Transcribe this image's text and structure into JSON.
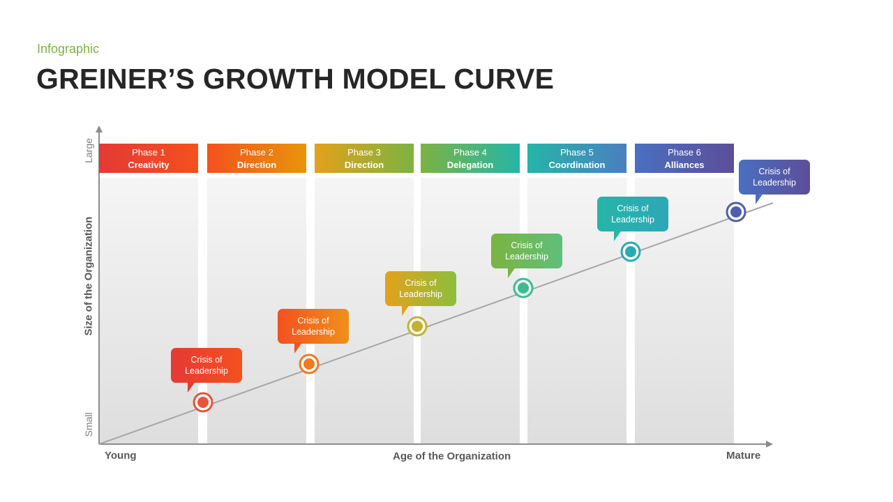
{
  "header": {
    "subtitle": "Infographic",
    "title": "GREINER’S GROWTH MODEL CURVE"
  },
  "axes": {
    "y_label": "Size of the Organization",
    "y_top": "Large",
    "y_bottom": "Small",
    "x_label": "Age of the Organization",
    "x_left": "Young",
    "x_right": "Mature"
  },
  "phases": [
    {
      "number": "Phase 1",
      "name": "Creativity",
      "color_start": "#e53935",
      "color_end": "#f4511e"
    },
    {
      "number": "Phase 2",
      "name": "Direction",
      "color_start": "#f4511e",
      "color_end": "#e8950a"
    },
    {
      "number": "Phase 3",
      "name": "Direction",
      "color_start": "#e3a11b",
      "color_end": "#7cb342"
    },
    {
      "number": "Phase 4",
      "name": "Delegation",
      "color_start": "#7cb342",
      "color_end": "#26b5a8"
    },
    {
      "number": "Phase 5",
      "name": "Coordination",
      "color_start": "#26b5a8",
      "color_end": "#4a7fc1"
    },
    {
      "number": "Phase 6",
      "name": "Alliances",
      "color_start": "#4a6fc1",
      "color_end": "#5d4e99"
    }
  ],
  "crises": [
    {
      "line1": "Crisis of",
      "line2": "Leadership",
      "color_start": "#e53935",
      "color_end": "#f4511e",
      "ring": "#e8533a"
    },
    {
      "line1": "Crisis of",
      "line2": "Leadership",
      "color_start": "#f4511e",
      "color_end": "#f0901a",
      "ring": "#f07a1e"
    },
    {
      "line1": "Crisis of",
      "line2": "Leadership",
      "color_start": "#e3a11b",
      "color_end": "#8cbf3c",
      "ring": "#c7b02e"
    },
    {
      "line1": "Crisis of",
      "line2": "Leadership",
      "color_start": "#7cb342",
      "color_end": "#5fbf7a",
      "ring": "#3dbb92"
    },
    {
      "line1": "Crisis of",
      "line2": "Leadership",
      "color_start": "#26b5a8",
      "color_end": "#2ea7b8",
      "ring": "#2aaab6"
    },
    {
      "line1": "Crisis of",
      "line2": "Leadership",
      "color_start": "#4a6fc1",
      "color_end": "#5d4e99",
      "ring": "#4d5fae"
    }
  ]
}
